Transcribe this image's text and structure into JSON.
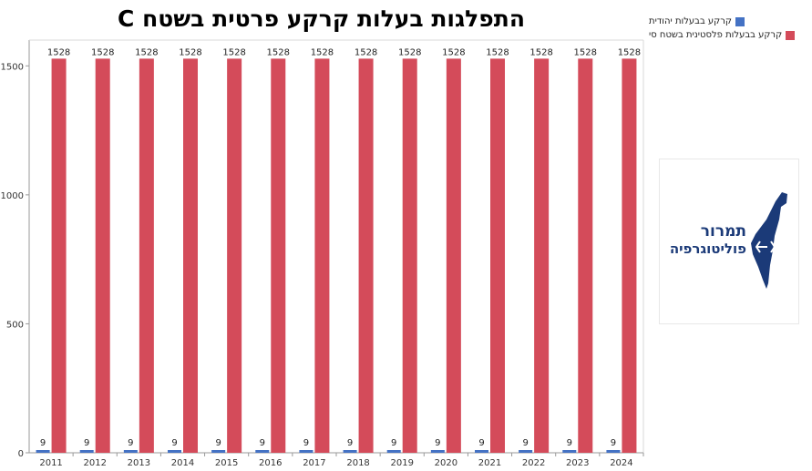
{
  "chart_data": {
    "type": "bar",
    "title": "התפלגות בעלות קרקע פרטית בשטח C",
    "categories": [
      "2011",
      "2012",
      "2013",
      "2014",
      "2015",
      "2016",
      "2017",
      "2018",
      "2019",
      "2020",
      "2021",
      "2022",
      "2023",
      "2024"
    ],
    "series": [
      {
        "name": "קרקע בבעלות יהודית",
        "color": "#4472c4",
        "values": [
          9,
          9,
          9,
          9,
          9,
          9,
          9,
          9,
          9,
          9,
          9,
          9,
          9,
          9
        ]
      },
      {
        "name": "קרקע בבעלות פלסטינית בשטח סי",
        "color": "#d44b5a",
        "values": [
          1528,
          1528,
          1528,
          1528,
          1528,
          1528,
          1528,
          1528,
          1528,
          1528,
          1528,
          1528,
          1528,
          1528
        ]
      }
    ],
    "ylim": [
      0,
      1600
    ],
    "yticks": [
      0,
      500,
      1000,
      1500
    ],
    "grid": false,
    "legend_position": "top-right",
    "xlabel": "",
    "ylabel": ""
  },
  "logo": {
    "line1": "תמרור",
    "line2": "פוליטוגרפיה",
    "color": "#1b3a78"
  }
}
